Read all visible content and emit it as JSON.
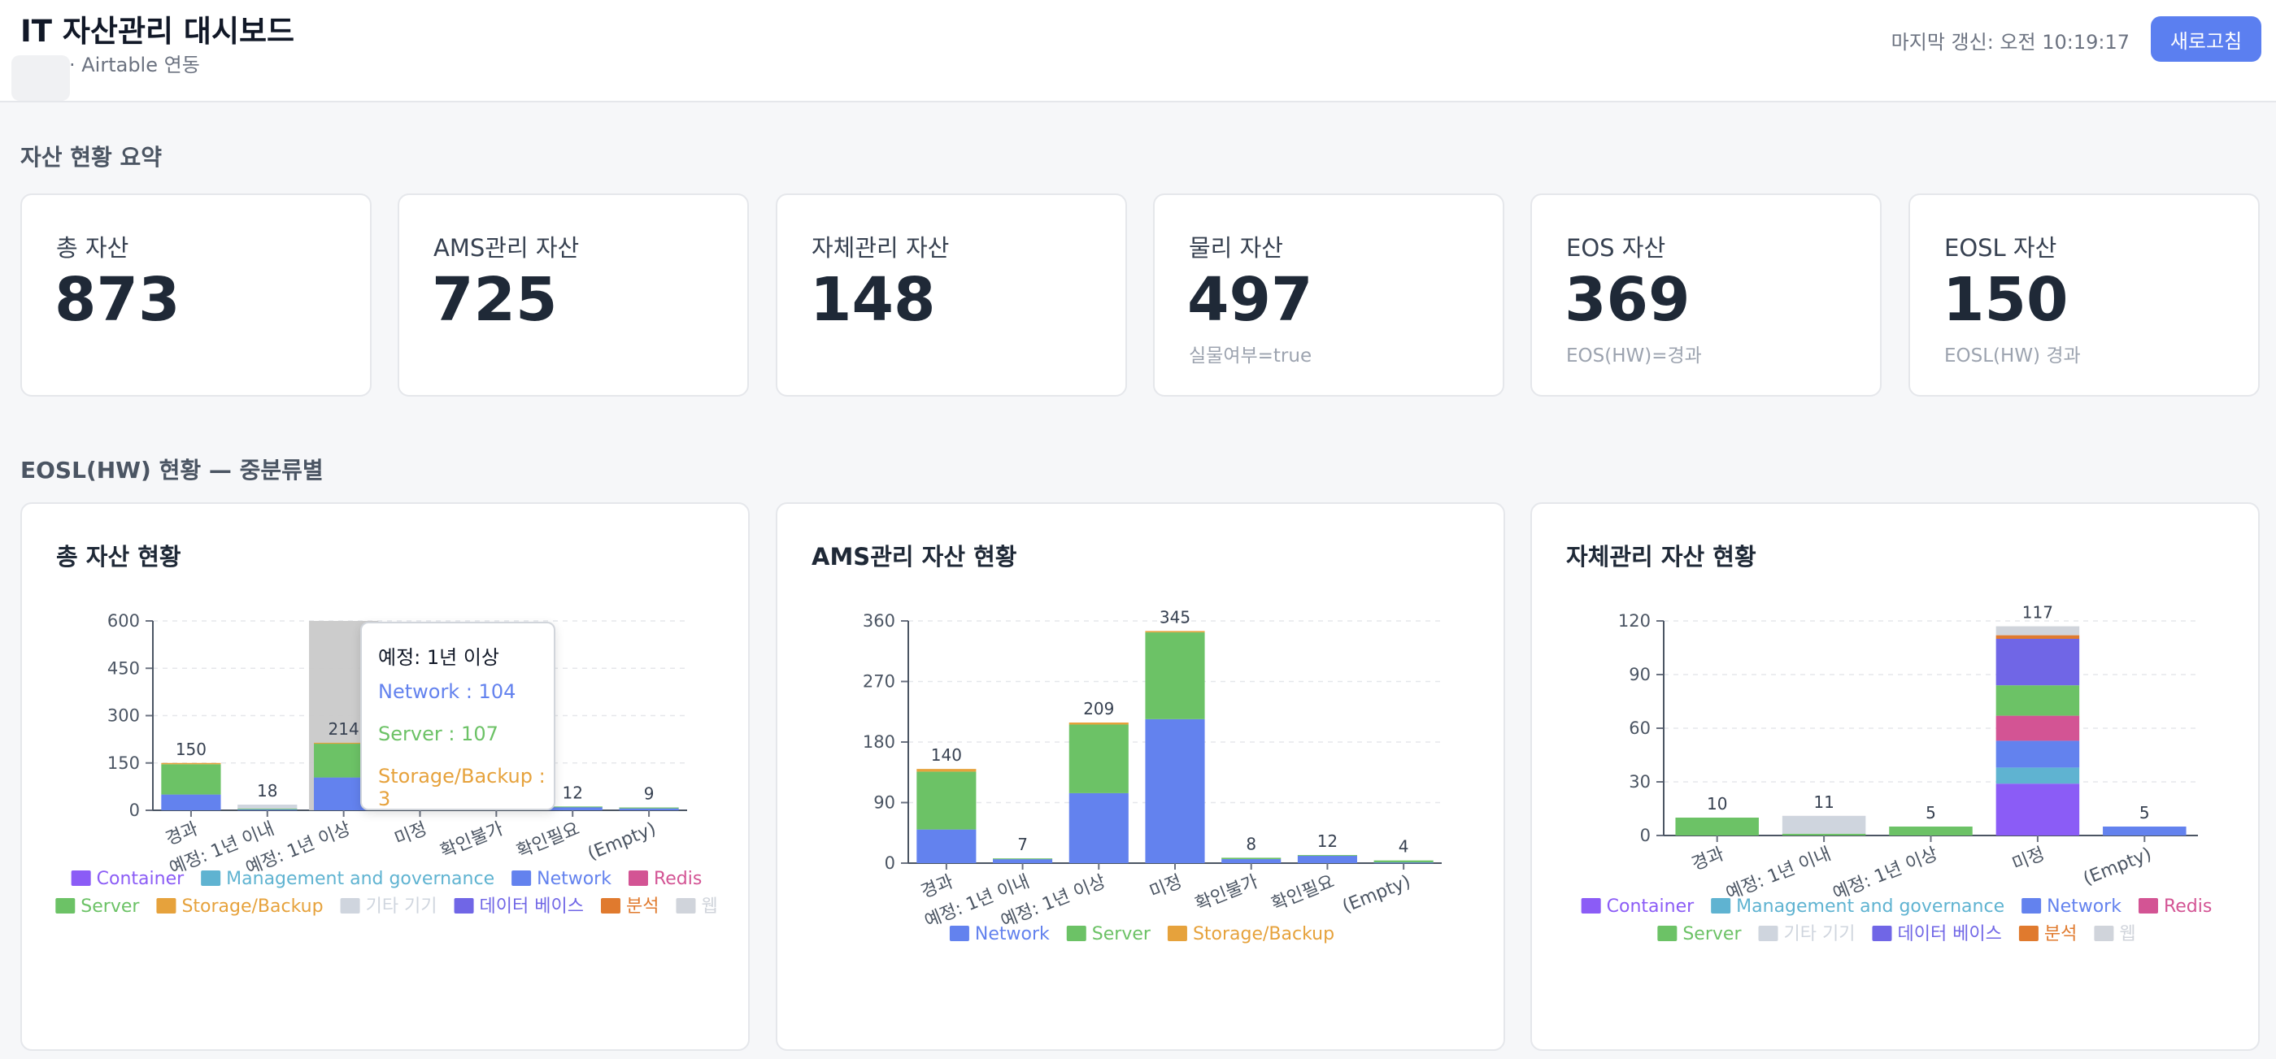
{
  "header": {
    "title": "IT 자산관리 대시보드",
    "subtitle": "AMS · Airtable 연동",
    "last_updated": "마지막 갱신: 오전 10:19:17",
    "refresh_label": "새로고침"
  },
  "summary": {
    "section_title": "자산 현황 요약",
    "cards": [
      {
        "label": "총 자산",
        "value": "873",
        "sub": ""
      },
      {
        "label": "AMS관리 자산",
        "value": "725",
        "sub": ""
      },
      {
        "label": "자체관리 자산",
        "value": "148",
        "sub": ""
      },
      {
        "label": "물리 자산",
        "value": "497",
        "sub": "실물여부=true"
      },
      {
        "label": "EOS 자산",
        "value": "369",
        "sub": "EOS(HW)=경과"
      },
      {
        "label": "EOSL 자산",
        "value": "150",
        "sub": "EOSL(HW) 경과"
      }
    ]
  },
  "eosl_section": {
    "title": "EOSL(HW) 현황 — 중분류별"
  },
  "colors": {
    "Container": "#8b5cf6",
    "Management and governance": "#5fb3d1",
    "Network": "#6382ee",
    "Redis": "#d35494",
    "Server": "#6cc266",
    "Storage/Backup": "#e6a23c",
    "기타 기기": "#cfd5de",
    "데이터 베이스": "#7066e6",
    "분석": "#e07a2e",
    "웹": "#d0d4db"
  },
  "tooltip": {
    "title": "예정: 1년 이상",
    "lines": [
      "Network : 104",
      "Server : 107",
      "Storage/Backup : 3"
    ]
  },
  "chart_data": [
    {
      "type": "bar",
      "title": "총 자산 현황",
      "stacked": true,
      "categories": [
        "경과",
        "예정: 1년 이내",
        "예정: 1년 이상",
        "미정",
        "확인불가",
        "확인필요",
        "(Empty)"
      ],
      "totals": [
        150,
        18,
        214,
        null,
        null,
        12,
        9
      ],
      "ylim": [
        0,
        600
      ],
      "yticks": [
        0,
        150,
        300,
        450,
        600
      ],
      "series": [
        {
          "name": "Network",
          "values": [
            50,
            3,
            104,
            0,
            0,
            11,
            6
          ]
        },
        {
          "name": "Server",
          "values": [
            96,
            2,
            107,
            0,
            0,
            1,
            3
          ]
        },
        {
          "name": "Storage/Backup",
          "values": [
            4,
            0,
            3,
            0,
            0,
            0,
            0
          ]
        },
        {
          "name": "기타 기기",
          "values": [
            0,
            13,
            0,
            0,
            0,
            0,
            0
          ]
        }
      ],
      "legend": [
        "Container",
        "Management and governance",
        "Network",
        "Redis",
        "Server",
        "Storage/Backup",
        "기타 기기",
        "데이터 베이스",
        "분석",
        "웹"
      ],
      "grid": true
    },
    {
      "type": "bar",
      "title": "AMS관리 자산 현황",
      "stacked": true,
      "categories": [
        "경과",
        "예정: 1년 이내",
        "예정: 1년 이상",
        "미정",
        "확인불가",
        "확인필요",
        "(Empty)"
      ],
      "totals": [
        140,
        7,
        209,
        345,
        8,
        12,
        4
      ],
      "ylim": [
        0,
        360
      ],
      "yticks": [
        0,
        90,
        180,
        270,
        360
      ],
      "series": [
        {
          "name": "Network",
          "values": [
            50,
            6,
            104,
            214,
            6,
            11,
            1
          ]
        },
        {
          "name": "Server",
          "values": [
            86,
            1,
            102,
            129,
            2,
            1,
            3
          ]
        },
        {
          "name": "Storage/Backup",
          "values": [
            4,
            0,
            3,
            2,
            0,
            0,
            0
          ]
        }
      ],
      "legend": [
        "Network",
        "Server",
        "Storage/Backup"
      ],
      "grid": true
    },
    {
      "type": "bar",
      "title": "자체관리 자산 현황",
      "stacked": true,
      "categories": [
        "경과",
        "예정: 1년 이내",
        "예정: 1년 이상",
        "미정",
        "(Empty)"
      ],
      "totals": [
        10,
        11,
        5,
        117,
        5
      ],
      "ylim": [
        0,
        120
      ],
      "yticks": [
        0,
        30,
        60,
        90,
        120
      ],
      "series": [
        {
          "name": "Container",
          "values": [
            0,
            0,
            0,
            29,
            0
          ]
        },
        {
          "name": "Management and governance",
          "values": [
            0,
            0,
            0,
            9,
            0
          ]
        },
        {
          "name": "Network",
          "values": [
            0,
            0,
            0,
            15,
            5
          ]
        },
        {
          "name": "Redis",
          "values": [
            0,
            0,
            0,
            14,
            0
          ]
        },
        {
          "name": "Server",
          "values": [
            10,
            1,
            5,
            17,
            0
          ]
        },
        {
          "name": "데이터 베이스",
          "values": [
            0,
            0,
            0,
            26,
            0
          ]
        },
        {
          "name": "분석",
          "values": [
            0,
            0,
            0,
            2,
            0
          ]
        },
        {
          "name": "기타 기기",
          "values": [
            0,
            10,
            0,
            0,
            0
          ]
        },
        {
          "name": "웹",
          "values": [
            0,
            0,
            0,
            5,
            0
          ]
        }
      ],
      "legend": [
        "Container",
        "Management and governance",
        "Network",
        "Redis",
        "Server",
        "기타 기기",
        "데이터 베이스",
        "분석",
        "웹"
      ],
      "grid": true
    }
  ]
}
